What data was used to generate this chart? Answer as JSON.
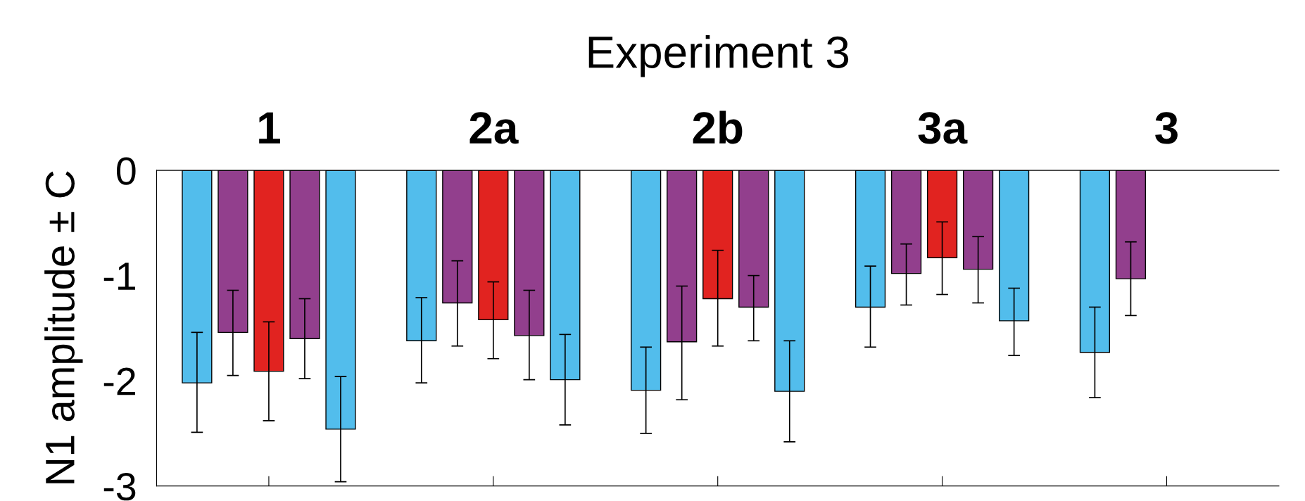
{
  "chart_data": {
    "type": "bar",
    "title": "Experiment 3",
    "ylabel": "N1 amplitude ± C",
    "categories": [
      "1",
      "2a",
      "2b",
      "3a",
      "3"
    ],
    "ylim": [
      -3,
      0
    ],
    "yticks": [
      0,
      -1,
      -2,
      -3
    ],
    "grid": false,
    "legend": false,
    "series": [
      {
        "color": "#52bdec",
        "values": [
          -2.02,
          -1.62,
          -2.09,
          -1.3,
          -1.73
        ],
        "errors": [
          [
            -2.49,
            -1.54
          ],
          [
            -2.02,
            -1.21
          ],
          [
            -2.5,
            -1.68
          ],
          [
            -1.68,
            -0.91
          ],
          [
            -2.16,
            -1.3
          ]
        ]
      },
      {
        "color": "#923f8d",
        "values": [
          -1.54,
          -1.26,
          -1.63,
          -0.98,
          -1.03
        ],
        "errors": [
          [
            -1.95,
            -1.14
          ],
          [
            -1.67,
            -0.86
          ],
          [
            -2.18,
            -1.1
          ],
          [
            -1.28,
            -0.7
          ],
          [
            -1.38,
            -0.68
          ]
        ]
      },
      {
        "color": "#e12320",
        "values": [
          -1.91,
          -1.42,
          -1.22,
          -0.83,
          null
        ],
        "errors": [
          [
            -2.38,
            -1.44
          ],
          [
            -1.79,
            -1.06
          ],
          [
            -1.67,
            -0.76
          ],
          [
            -1.18,
            -0.49
          ],
          null
        ]
      },
      {
        "color": "#923f8d",
        "values": [
          -1.6,
          -1.57,
          -1.3,
          -0.94,
          null
        ],
        "errors": [
          [
            -1.98,
            -1.22
          ],
          [
            -1.99,
            -1.14
          ],
          [
            -1.62,
            -1.0
          ],
          [
            -1.26,
            -0.63
          ],
          null
        ]
      },
      {
        "color": "#52bdec",
        "values": [
          -2.46,
          -1.99,
          -2.1,
          -1.43,
          null
        ],
        "errors": [
          [
            -2.96,
            -1.96
          ],
          [
            -2.42,
            -1.56
          ],
          [
            -2.58,
            -1.62
          ],
          [
            -1.76,
            -1.12
          ],
          null
        ]
      }
    ]
  }
}
